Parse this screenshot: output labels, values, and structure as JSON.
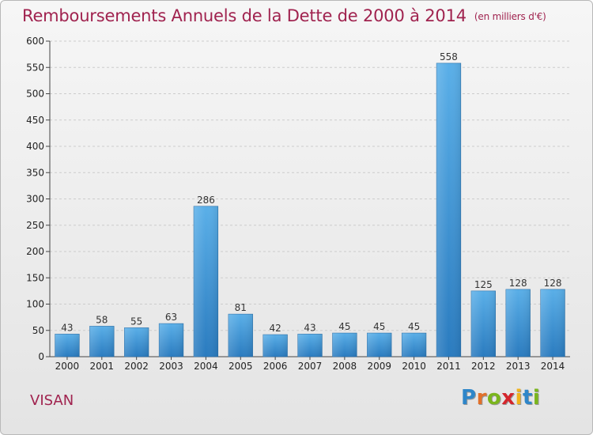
{
  "header": {
    "title": "Remboursements Annuels de la Dette de 2000 à 2014",
    "unit": "(en milliers d'€)"
  },
  "footer": {
    "commune": "VISAN",
    "logo_letters": [
      {
        "ch": "P",
        "color": "#2e86c9"
      },
      {
        "ch": "r",
        "color": "#e2702a"
      },
      {
        "ch": "o",
        "color": "#7ab51d"
      },
      {
        "ch": "x",
        "color": "#d4262c"
      },
      {
        "ch": "i",
        "color": "#f0b21c"
      },
      {
        "ch": "t",
        "color": "#2e86c9"
      },
      {
        "ch": "i",
        "color": "#7ab51d"
      }
    ]
  },
  "chart_data": {
    "type": "bar",
    "title": "Remboursements Annuels de la Dette de 2000 à 2014",
    "subtitle": "(en milliers d'€)",
    "categories": [
      "2000",
      "2001",
      "2002",
      "2003",
      "2004",
      "2005",
      "2006",
      "2007",
      "2008",
      "2009",
      "2010",
      "2011",
      "2012",
      "2013",
      "2014"
    ],
    "values": [
      43,
      58,
      55,
      63,
      286,
      81,
      42,
      43,
      45,
      45,
      45,
      558,
      125,
      128,
      128
    ],
    "ylim": [
      0,
      600
    ],
    "yticks": [
      0,
      50,
      100,
      150,
      200,
      250,
      300,
      350,
      400,
      450,
      500,
      550,
      600
    ],
    "grid": true,
    "bar_color_top": "#5aafe8",
    "bar_color_bottom": "#2a7bbf"
  }
}
